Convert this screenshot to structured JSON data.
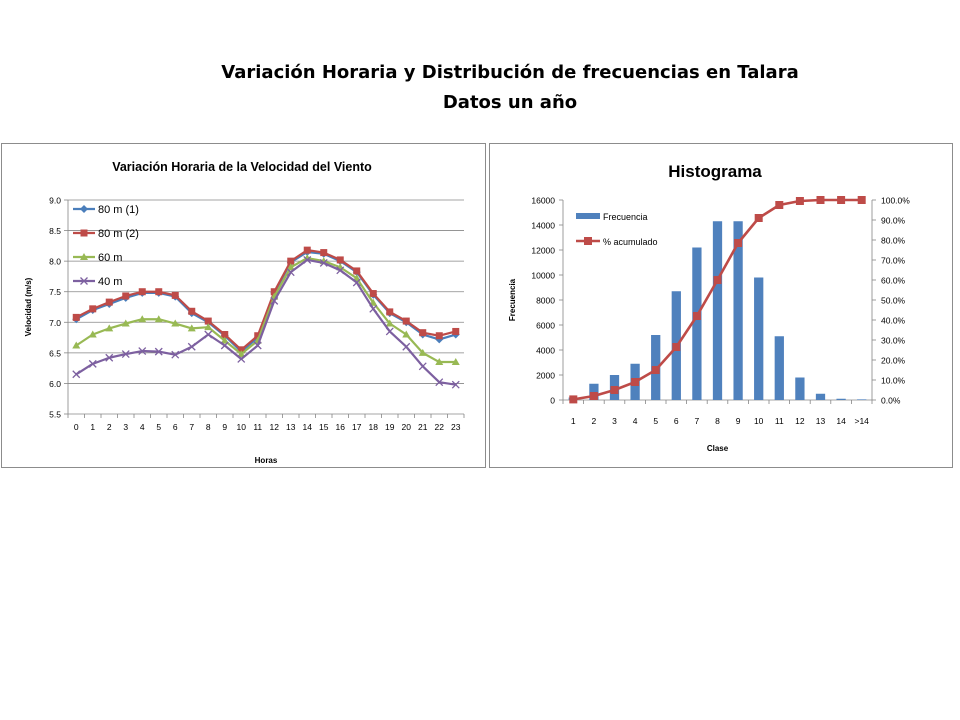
{
  "page": {
    "title_line1": "Variación Horaria y Distribución de frecuencias en Talara",
    "title_line2": "Datos un año"
  },
  "colors": {
    "series_80m_1": "#4a7ebb",
    "series_80m_2": "#be4b48",
    "series_60m": "#98b954",
    "series_40m": "#7d60a0",
    "bar": "#4f81bd",
    "cumulative": "#be4b48",
    "gridline": "#868686",
    "axis": "#868686"
  },
  "chart_data": [
    {
      "type": "line",
      "title": "Variación Horaria de la Velocidad del Viento",
      "xlabel": "Horas",
      "ylabel": "Velocidad (m/s)",
      "x": [
        0,
        1,
        2,
        3,
        4,
        5,
        6,
        7,
        8,
        9,
        10,
        11,
        12,
        13,
        14,
        15,
        16,
        17,
        18,
        19,
        20,
        21,
        22,
        23
      ],
      "ylim": [
        5.5,
        9.0
      ],
      "yticks": [
        "5.5",
        "6.0",
        "6.5",
        "7.0",
        "7.5",
        "8.0",
        "8.5",
        "9.0"
      ],
      "grid": true,
      "legend_position": "top-left",
      "series": [
        {
          "name": "80 m (1)",
          "marker": "diamond",
          "color_key": "series_80m_1",
          "values": [
            7.05,
            7.2,
            7.3,
            7.4,
            7.48,
            7.48,
            7.42,
            7.15,
            7.0,
            6.78,
            6.52,
            6.75,
            7.48,
            7.98,
            8.15,
            8.12,
            8.0,
            7.82,
            7.45,
            7.15,
            7.0,
            6.8,
            6.72,
            6.8
          ]
        },
        {
          "name": "80 m (2)",
          "marker": "square",
          "color_key": "series_80m_2",
          "values": [
            7.08,
            7.22,
            7.33,
            7.43,
            7.5,
            7.5,
            7.44,
            7.18,
            7.02,
            6.8,
            6.55,
            6.78,
            7.5,
            8.0,
            8.18,
            8.14,
            8.02,
            7.84,
            7.47,
            7.17,
            7.02,
            6.83,
            6.78,
            6.85
          ]
        },
        {
          "name": "60 m",
          "marker": "triangle",
          "color_key": "series_60m",
          "values": [
            6.62,
            6.8,
            6.9,
            6.98,
            7.05,
            7.05,
            6.98,
            6.9,
            6.92,
            6.7,
            6.48,
            6.7,
            7.42,
            7.9,
            8.05,
            8.0,
            7.9,
            7.72,
            7.32,
            6.98,
            6.8,
            6.5,
            6.35,
            6.35
          ]
        },
        {
          "name": "40 m",
          "marker": "x",
          "color_key": "series_40m",
          "values": [
            6.15,
            6.32,
            6.42,
            6.48,
            6.53,
            6.52,
            6.47,
            6.6,
            6.8,
            6.62,
            6.4,
            6.62,
            7.35,
            7.82,
            8.02,
            7.97,
            7.85,
            7.65,
            7.22,
            6.85,
            6.6,
            6.28,
            6.02,
            5.98
          ]
        }
      ]
    },
    {
      "type": "bar",
      "title": "Histograma",
      "xlabel": "Clase",
      "ylabel": "Frecuencia",
      "categories": [
        "1",
        "2",
        "3",
        "4",
        "5",
        "6",
        "7",
        "8",
        "9",
        "10",
        "11",
        "12",
        "13",
        "14",
        ">14"
      ],
      "ylim": [
        0,
        16000
      ],
      "yticks": [
        "0",
        "2000",
        "4000",
        "6000",
        "8000",
        "10000",
        "12000",
        "14000",
        "16000"
      ],
      "y2lim": [
        0,
        100
      ],
      "y2ticks": [
        "0.0%",
        "10.0%",
        "20.0%",
        "30.0%",
        "40.0%",
        "50.0%",
        "60.0%",
        "70.0%",
        "80.0%",
        "90.0%",
        "100.0%"
      ],
      "grid": false,
      "legend_position": "top-left",
      "series": [
        {
          "name": "Frecuencia",
          "kind": "bar",
          "color_key": "bar",
          "values": [
            200,
            1300,
            2000,
            2900,
            5200,
            8700,
            12200,
            14300,
            14300,
            9800,
            5100,
            1800,
            500,
            100,
            50
          ]
        },
        {
          "name": "% acumulado",
          "kind": "line",
          "axis": "secondary",
          "marker": "square",
          "color_key": "cumulative",
          "values": [
            0.3,
            2.0,
            5.0,
            9.0,
            15.0,
            26.5,
            42.0,
            60.0,
            78.5,
            91.0,
            97.5,
            99.5,
            100.0,
            100.0,
            100.0
          ]
        }
      ]
    }
  ]
}
